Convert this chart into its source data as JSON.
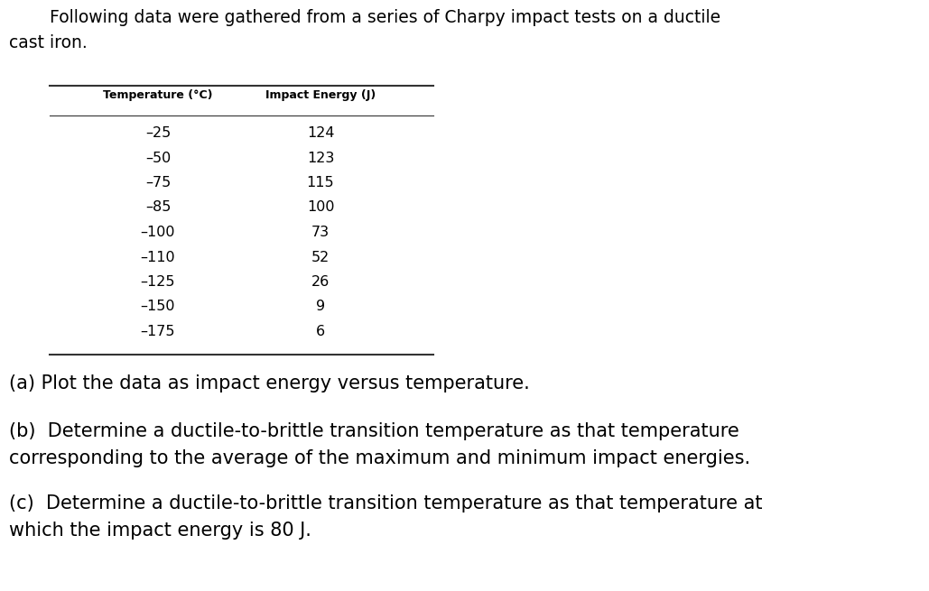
{
  "title_line1": "Following data were gathered from a series of Charpy impact tests on a ductile",
  "title_line2": "cast iron.",
  "col1_header": "Temperature (°C)",
  "col2_header": "Impact Energy (J)",
  "temperatures": [
    "–25",
    "–50",
    "–75",
    "–85",
    "–100",
    "–110",
    "–125",
    "–150",
    "–175"
  ],
  "energies": [
    "124",
    "123",
    "115",
    "100",
    "73",
    "52",
    "26",
    "9",
    "6"
  ],
  "question_a": "(a) Plot the data as impact energy versus temperature.",
  "question_b_line1": "(b)  Determine a ductile-to-brittle transition temperature as that temperature",
  "question_b_line2": "corresponding to the average of the maximum and minimum impact energies.",
  "question_c_line1": "(c)  Determine a ductile-to-brittle transition temperature as that temperature at",
  "question_c_line2": "which the impact energy is 80 J.",
  "bg_color": "#ffffff",
  "text_color": "#000000",
  "table_line_color": "#333333",
  "title_fontsize": 13.5,
  "header_fontsize": 9.0,
  "data_fontsize": 11.5,
  "question_fontsize": 15.0,
  "fig_width": 10.29,
  "fig_height": 6.55,
  "dpi": 100
}
